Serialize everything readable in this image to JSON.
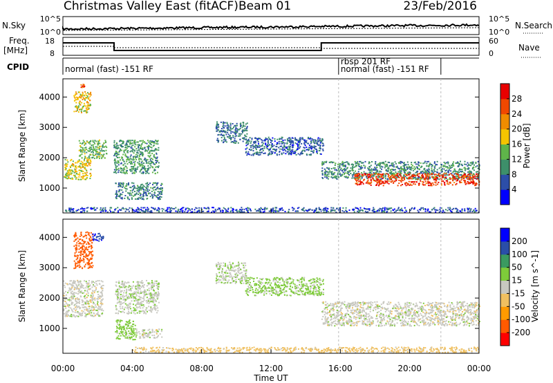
{
  "title": "Christmas Valley East (fitACF)",
  "beam": "Beam 01",
  "date": "23/Feb/2016",
  "xlabel": "Time UT",
  "x_ticks": [
    "00:00",
    "04:00",
    "08:00",
    "12:00",
    "16:00",
    "20:00",
    "00:00"
  ],
  "noise_panel": {
    "left_label": "N.Sky",
    "right_label": "N.Search",
    "left_ticks": [
      "10^5",
      "10^0"
    ],
    "right_ticks": [
      "10^5",
      "10^0"
    ]
  },
  "freq_panel": {
    "left_label_1": "Freq.",
    "left_label_2": "[MHz]",
    "right_label": "Nave",
    "left_ticks": [
      "18",
      "8"
    ],
    "right_ticks": [
      "60",
      "0"
    ]
  },
  "cpid_panel": {
    "label": "CPID",
    "segments": [
      {
        "start_hour": 0,
        "end_hour": 15.9,
        "lines": [
          "normal (fast) -151 RF"
        ]
      },
      {
        "start_hour": 15.9,
        "end_hour": 21.8,
        "lines": [
          "rbsp 201 RF",
          "normal (fast) -151 RF"
        ]
      }
    ]
  },
  "chart_data": [
    {
      "type": "heatmap",
      "name": "power",
      "xlabel": "",
      "ylabel": "Slant Range [km]",
      "xlim": [
        0,
        24
      ],
      "ylim": [
        180,
        4600
      ],
      "y_ticks": [
        1000,
        2000,
        3000,
        4000
      ],
      "colorbar_label": "Power [dB]",
      "colorbar_ticks": [
        "4",
        "8",
        "12",
        "16",
        "20",
        "24",
        "28"
      ],
      "colorbar_range": [
        0,
        32
      ],
      "regions": [
        {
          "t0": 0.05,
          "t1": 1.6,
          "r0": 1300,
          "r1": 2000,
          "v": 17
        },
        {
          "t0": 0.9,
          "t1": 2.5,
          "r0": 2000,
          "r1": 2600,
          "v": 13
        },
        {
          "t0": 0.6,
          "t1": 1.6,
          "r0": 3500,
          "r1": 4200,
          "v": 18
        },
        {
          "t0": 1.0,
          "t1": 1.3,
          "r0": 4250,
          "r1": 4450,
          "v": 27
        },
        {
          "t0": 2.9,
          "t1": 5.5,
          "r0": 1500,
          "r1": 2600,
          "v": 11
        },
        {
          "t0": 3.0,
          "t1": 5.7,
          "r0": 650,
          "r1": 1200,
          "v": 9
        },
        {
          "t0": 8.8,
          "t1": 10.6,
          "r0": 2500,
          "r1": 3200,
          "v": 8
        },
        {
          "t0": 10.5,
          "t1": 15.0,
          "r0": 2100,
          "r1": 2700,
          "v": 7
        },
        {
          "t0": 14.9,
          "t1": 24,
          "r0": 1300,
          "r1": 1900,
          "v": 10
        },
        {
          "t0": 16.8,
          "t1": 24,
          "r0": 1100,
          "r1": 1500,
          "v": 27
        },
        {
          "t0": 0,
          "t1": 24,
          "r0": 220,
          "r1": 380,
          "v": 6
        }
      ]
    },
    {
      "type": "heatmap",
      "name": "velocity",
      "xlabel": "",
      "ylabel": "Slant Range [km]",
      "xlim": [
        0,
        24
      ],
      "ylim": [
        180,
        4600
      ],
      "y_ticks": [
        1000,
        2000,
        3000,
        4000
      ],
      "colorbar_label": "Velocity [m s^-1]",
      "colorbar_ticks": [
        "200",
        "100",
        "50",
        "15",
        "-15",
        "-50",
        "-100",
        "-200"
      ],
      "regions": [
        {
          "t0": 0,
          "t1": 2.3,
          "r0": 1400,
          "r1": 2600,
          "v": 0
        },
        {
          "t0": 0.6,
          "t1": 1.7,
          "r0": 3000,
          "r1": 4200,
          "v": -180
        },
        {
          "t0": 1.6,
          "t1": 2.3,
          "r0": 3900,
          "r1": 4150,
          "v": 190
        },
        {
          "t0": 3.0,
          "t1": 5.5,
          "r0": 1500,
          "r1": 2600,
          "v": 5
        },
        {
          "t0": 3.0,
          "t1": 4.2,
          "r0": 650,
          "r1": 1300,
          "v": 30
        },
        {
          "t0": 4.2,
          "t1": 5.7,
          "r0": 700,
          "r1": 1000,
          "v": 0
        },
        {
          "t0": 8.8,
          "t1": 10.6,
          "r0": 2500,
          "r1": 3200,
          "v": 10
        },
        {
          "t0": 10.5,
          "t1": 15.0,
          "r0": 2100,
          "r1": 2700,
          "v": 25
        },
        {
          "t0": 14.9,
          "t1": 24,
          "r0": 1100,
          "r1": 1900,
          "v": 0
        },
        {
          "t0": 4.0,
          "t1": 24,
          "r0": 220,
          "r1": 400,
          "v": -30
        }
      ]
    }
  ],
  "colors": {
    "power_scale": [
      "#0000ff",
      "#2c4ea8",
      "#3d8f6a",
      "#5fb44a",
      "#f5c400",
      "#f08c00",
      "#f04800",
      "#e80000"
    ],
    "velocity_scale": [
      "#ff0000",
      "#ff5a00",
      "#ff9a00",
      "#f0c060",
      "#c8c8c0",
      "#7ecb3a",
      "#3a9a60",
      "#2a4ea8",
      "#0000ff"
    ]
  }
}
